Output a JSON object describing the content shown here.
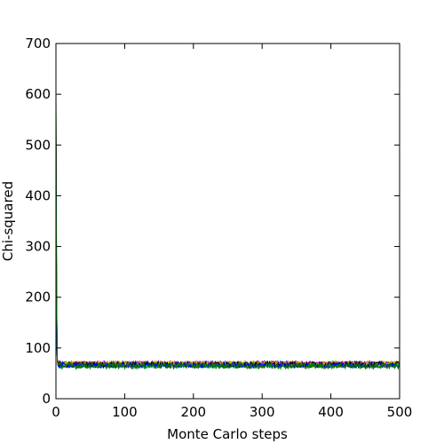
{
  "chart_data": {
    "type": "line",
    "title": "",
    "xlabel": "Monte Carlo steps",
    "ylabel": "Chi-squared",
    "xlim": [
      0,
      500
    ],
    "ylim": [
      0,
      700
    ],
    "xticks": [
      "0",
      "100",
      "200",
      "300",
      "400",
      "500"
    ],
    "yticks": [
      "0",
      "100",
      "200",
      "300",
      "400",
      "500",
      "600",
      "700"
    ],
    "grid": false,
    "legend": "none",
    "series": [
      {
        "color": "#0000ff",
        "start": 520,
        "plateau": 68,
        "noise": 6
      },
      {
        "color": "#008000",
        "start": 600,
        "plateau": 67,
        "noise": 6
      },
      {
        "color": "#ff0000",
        "start": 480,
        "plateau": 69,
        "noise": 5
      },
      {
        "color": "#00bfbf",
        "start": 450,
        "plateau": 66,
        "noise": 5
      },
      {
        "color": "#bf00bf",
        "start": 500,
        "plateau": 68,
        "noise": 6
      },
      {
        "color": "#bfbf00",
        "start": 470,
        "plateau": 69,
        "noise": 5
      },
      {
        "color": "#000000",
        "start": 560,
        "plateau": 67,
        "noise": 6
      },
      {
        "color": "#0000ff",
        "start": 430,
        "plateau": 66,
        "noise": 5
      },
      {
        "color": "#008000",
        "start": 610,
        "plateau": 65,
        "noise": 6
      }
    ]
  }
}
